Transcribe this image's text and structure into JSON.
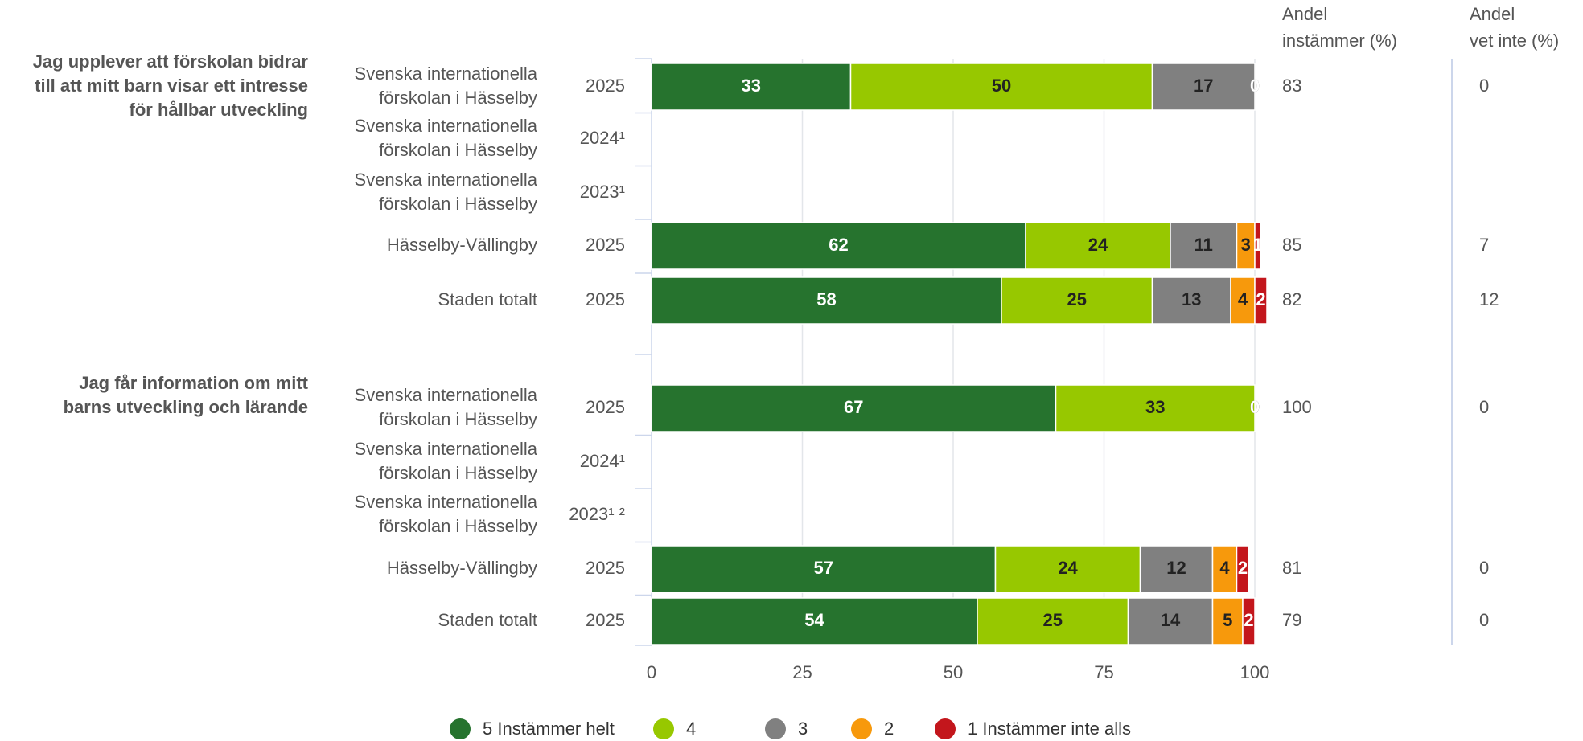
{
  "chart_data": {
    "type": "bar",
    "orientation": "horizontal",
    "stacked": true,
    "groups": [
      {
        "question": [
          "Jag upplever att förskolan bidrar",
          "till att mitt barn visar ett intresse",
          "för hållbar utveckling"
        ],
        "rows": [
          {
            "organization": [
              "Svenska internationella",
              "förskolan i Hässelby"
            ],
            "year": "2025"
          },
          {
            "organization": [
              "Svenska internationella",
              "förskolan i Hässelby"
            ],
            "year": "2024¹"
          },
          {
            "organization": [
              "Svenska internationella",
              "förskolan i Hässelby"
            ],
            "year": "2023¹"
          },
          {
            "organization": [
              "Hässelby-Vällingby"
            ],
            "year": "2025"
          },
          {
            "organization": [
              "Staden totalt"
            ],
            "year": "2025"
          }
        ]
      },
      {
        "question": [
          "Jag får information om mitt",
          "barns utveckling och lärande"
        ],
        "rows": [
          {
            "organization": [
              "Svenska internationella",
              "förskolan i Hässelby"
            ],
            "year": "2025"
          },
          {
            "organization": [
              "Svenska internationella",
              "förskolan i Hässelby"
            ],
            "year": "2024¹"
          },
          {
            "organization": [
              "Svenska internationella",
              "förskolan i Hässelby"
            ],
            "year": "2023¹ ²"
          },
          {
            "organization": [
              "Hässelby-Vällingby"
            ],
            "year": "2025"
          },
          {
            "organization": [
              "Staden totalt"
            ],
            "year": "2025"
          }
        ]
      }
    ],
    "series": [
      {
        "name": "5 Instämmer helt",
        "color": "#26732e",
        "values": [
          33,
          null,
          null,
          62,
          58,
          67,
          null,
          null,
          57,
          54
        ]
      },
      {
        "name": "4",
        "color": "#97c800",
        "values": [
          50,
          null,
          null,
          24,
          25,
          33,
          null,
          null,
          24,
          25
        ]
      },
      {
        "name": "3",
        "color": "#808080",
        "values": [
          17,
          null,
          null,
          11,
          13,
          0,
          null,
          null,
          12,
          14
        ]
      },
      {
        "name": "2",
        "color": "#f7990c",
        "values": [
          0,
          null,
          null,
          3,
          4,
          0,
          null,
          null,
          4,
          5
        ]
      },
      {
        "name": "1 Instämmer inte alls",
        "color": "#c3161c",
        "values": [
          0,
          null,
          null,
          1,
          2,
          0,
          null,
          null,
          2,
          2
        ]
      }
    ],
    "columns": [
      {
        "header": [
          "Andel",
          "instämmer (%)"
        ],
        "values": [
          83,
          null,
          null,
          85,
          82,
          100,
          null,
          null,
          81,
          79
        ]
      },
      {
        "header": [
          "Andel",
          "vet inte (%)"
        ],
        "values": [
          0,
          null,
          null,
          7,
          12,
          0,
          null,
          null,
          0,
          0
        ]
      }
    ],
    "xlim": [
      0,
      100
    ],
    "xticks": [
      0,
      25,
      50,
      75,
      100
    ],
    "grid": true
  }
}
